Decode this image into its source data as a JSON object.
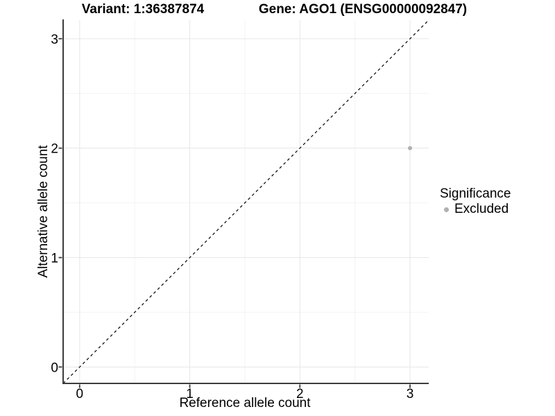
{
  "chart_data": {
    "type": "scatter",
    "titles": {
      "left": "Variant: 1:36387874",
      "right": "Gene: AGO1 (ENSG00000092847)"
    },
    "xlabel": "Reference allele count",
    "ylabel": "Alternative allele count",
    "xlim": [
      -0.15,
      3.17
    ],
    "ylim": [
      -0.15,
      3.17
    ],
    "xticks": [
      0,
      1,
      2,
      3
    ],
    "yticks": [
      0,
      1,
      2,
      3
    ],
    "minor_gridlines_x": [
      0.5,
      1.5,
      2.5
    ],
    "minor_gridlines_y": [
      0.5,
      1.5,
      2.5
    ],
    "grid": "major+minor",
    "legend": {
      "title": "Significance",
      "position": "right",
      "items": [
        {
          "label": "Excluded",
          "color": "#b0b0b0"
        }
      ]
    },
    "series": [
      {
        "name": "Excluded",
        "color": "#b0b0b0",
        "marker": "circle",
        "points": [
          {
            "x": 3,
            "y": 2
          }
        ]
      }
    ],
    "reference_line": {
      "equation": "y = x",
      "style": "dashed",
      "color": "#000000"
    }
  },
  "colors": {
    "axis_line": "#3c3c3c",
    "tick_mark": "#3c3c3c",
    "grid_major": "#e6e6e6",
    "grid_minor": "#f3f3f3",
    "background": "#ffffff"
  }
}
